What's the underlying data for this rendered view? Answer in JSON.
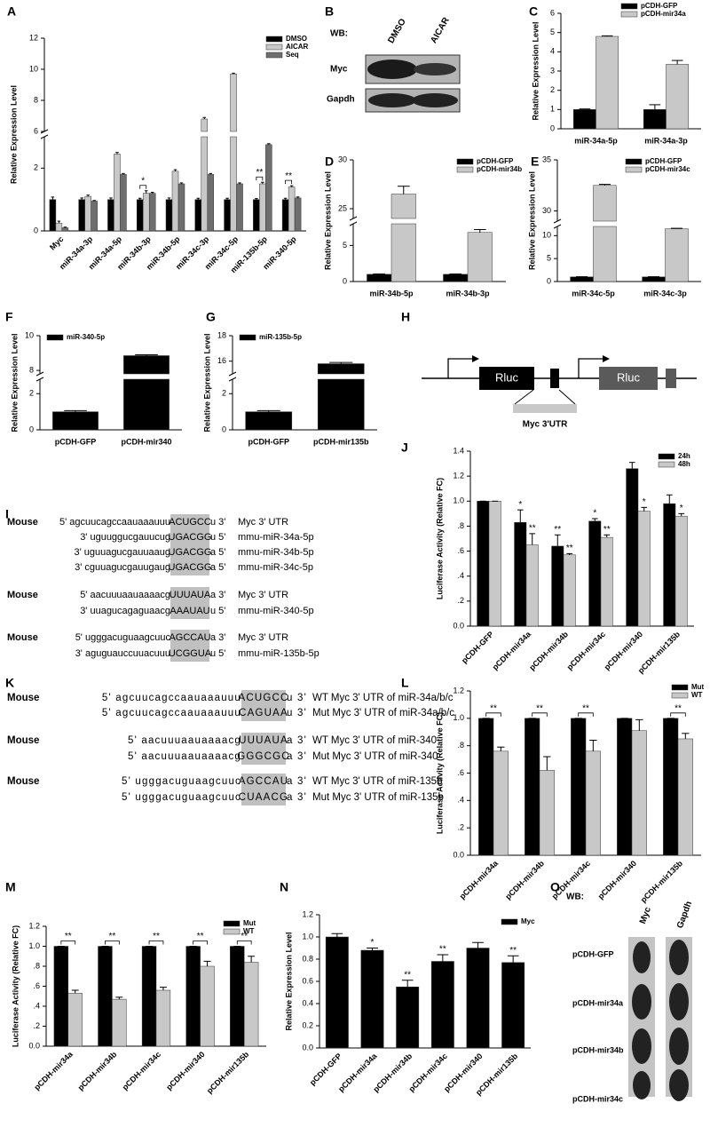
{
  "chart_data": [
    {
      "type": "bar",
      "panel": "A",
      "ylabel": "Relative Expression Level",
      "categories": [
        "Myc",
        "miR-34a-3p",
        "miR-34a-5p",
        "miR-34b-3p",
        "miR-34b-5p",
        "miR-34c-3p",
        "miR-34c-5p",
        "miR-135b-5p",
        "miR-340-5p"
      ],
      "series": [
        {
          "name": "DMSO",
          "color": "#000000",
          "values": [
            1.0,
            1.0,
            1.0,
            1.0,
            1.0,
            1.0,
            1.0,
            1.0,
            1.0
          ],
          "errors": [
            0.08,
            0.05,
            0.05,
            0.04,
            0.05,
            0.04,
            0.04,
            0.03,
            0.04
          ]
        },
        {
          "name": "AICAR",
          "color": "#c8c8c8",
          "values": [
            0.25,
            1.1,
            2.45,
            1.2,
            1.9,
            6.8,
            9.7,
            1.5,
            1.4
          ],
          "errors": [
            0.06,
            0.04,
            0.05,
            0.08,
            0.05,
            0.1,
            0.05,
            0.05,
            0.04
          ]
        },
        {
          "name": "Seq",
          "color": "#6e6e6e",
          "values": [
            0.1,
            0.95,
            1.8,
            1.2,
            1.5,
            1.8,
            1.5,
            2.75,
            1.05
          ],
          "errors": [
            0.02,
            0.02,
            0.03,
            0.03,
            0.03,
            0.03,
            0.03,
            0.03,
            0.03
          ]
        }
      ],
      "significance": [
        null,
        null,
        null,
        "*",
        null,
        null,
        null,
        "**",
        "**"
      ],
      "ylim": [
        0,
        12
      ],
      "yticks": [
        0,
        2,
        6,
        8,
        10,
        12
      ],
      "ybreak": [
        3,
        6
      ],
      "legend": "upper right"
    },
    {
      "type": "bar",
      "panel": "C",
      "ylabel": "Relative Expression Level",
      "categories": [
        "miR-34a-5p",
        "miR-34a-3p"
      ],
      "series": [
        {
          "name": "pCDH-GFP",
          "color": "#000000",
          "values": [
            1,
            1
          ],
          "errors": [
            0.03,
            0.25
          ]
        },
        {
          "name": "pCDH-mir34a",
          "color": "#c8c8c8",
          "values": [
            4.8,
            3.35
          ],
          "errors": [
            0.03,
            0.2
          ]
        }
      ],
      "ylim": [
        0,
        6
      ],
      "yticks": [
        0,
        1,
        2,
        3,
        4,
        5,
        6
      ],
      "legend": "upper right"
    },
    {
      "type": "bar",
      "panel": "D",
      "ylabel": "Relative Expression  Level",
      "categories": [
        "miR-34b-5p",
        "miR-34b-3p"
      ],
      "series": [
        {
          "name": "pCDH-GFP",
          "color": "#000000",
          "values": [
            1,
            1
          ],
          "errors": [
            0.05,
            0.05
          ]
        },
        {
          "name": "pCDH-mir34b",
          "color": "#c8c8c8",
          "values": [
            26.5,
            6.8
          ],
          "errors": [
            0.8,
            0.4
          ]
        }
      ],
      "ylim": [
        0,
        30
      ],
      "yticks": [
        0,
        5,
        25,
        30
      ],
      "ybreak": [
        8,
        24
      ],
      "legend": "upper right"
    },
    {
      "type": "bar",
      "panel": "E",
      "ylabel": "Relative Expression Level",
      "categories": [
        "miR-34c-5p",
        "miR-34c-3p"
      ],
      "series": [
        {
          "name": "pCDH-GFP",
          "color": "#000000",
          "values": [
            1,
            1
          ],
          "errors": [
            0.05,
            0.05
          ]
        },
        {
          "name": "pCDH-mir34c",
          "color": "#c8c8c8",
          "values": [
            32.5,
            11.5
          ],
          "errors": [
            0.1,
            0.1
          ]
        }
      ],
      "ylim": [
        0,
        35
      ],
      "yticks": [
        0,
        5,
        10,
        30,
        35
      ],
      "ybreak": [
        12,
        29
      ],
      "legend": "upper right"
    },
    {
      "type": "bar",
      "panel": "F",
      "ylabel": "Relative Expression Level",
      "categories": [
        "pCDH-GFP",
        "pCDH-mir340"
      ],
      "series": [
        {
          "name": "miR-340-5p",
          "color": "#000000",
          "values": [
            1,
            8.85
          ],
          "errors": [
            0.06,
            0.05
          ]
        }
      ],
      "ylim": [
        0,
        10
      ],
      "yticks": [
        0,
        2,
        8,
        10
      ],
      "ybreak": [
        2.8,
        7.8
      ],
      "legend": "upper left"
    },
    {
      "type": "bar",
      "panel": "G",
      "ylabel": "Relative Expression Level",
      "categories": [
        "pCDH-GFP",
        "pCDH-mir135b"
      ],
      "series": [
        {
          "name": "miR-135b-5p",
          "color": "#000000",
          "values": [
            1,
            15.8
          ],
          "errors": [
            0.06,
            0.1
          ]
        }
      ],
      "ylim": [
        0,
        18
      ],
      "yticks": [
        0,
        2,
        16,
        18
      ],
      "ybreak": [
        2.8,
        15
      ],
      "legend": "upper left"
    },
    {
      "type": "bar",
      "panel": "J",
      "ylabel": "Luciferase Activity (Relative FC)",
      "categories": [
        "pCDH-GFP",
        "pCDH-mir34a",
        "pCDH-mir34b",
        "pCDH-mir34c",
        "pCDH-mir340",
        "pCDH-mir135b"
      ],
      "series": [
        {
          "name": "24h",
          "color": "#000000",
          "values": [
            1.0,
            0.83,
            0.64,
            0.84,
            1.26,
            0.98
          ],
          "errors": [
            0,
            0.1,
            0.09,
            0.02,
            0.05,
            0.07
          ],
          "significance": [
            null,
            "*",
            "**",
            "*",
            null,
            null
          ]
        },
        {
          "name": "48h",
          "color": "#c8c8c8",
          "values": [
            1.0,
            0.65,
            0.57,
            0.71,
            0.92,
            0.88
          ],
          "errors": [
            0,
            0.09,
            0.01,
            0.02,
            0.03,
            0.02
          ],
          "significance": [
            null,
            "**",
            "**",
            "**",
            "*",
            "*"
          ]
        }
      ],
      "ylim": [
        0,
        1.4
      ],
      "yticks": [
        {
          "value": 0,
          "label": "0.0"
        },
        {
          "value": 0.2,
          "label": ".2"
        },
        {
          "value": 0.4,
          "label": ".4"
        },
        {
          "value": 0.6,
          "label": ".6"
        },
        {
          "value": 0.8,
          "label": ".8"
        },
        {
          "value": 1.0,
          "label": "1.0"
        },
        1.2,
        1.4
      ],
      "legend": "upper right"
    },
    {
      "type": "bar",
      "panel": "L",
      "ylabel": "Luciferase  Activity (Relative FC)",
      "categories": [
        "pCDH-mir34a",
        "pCDH-mir34b",
        "pCDH-mir34c",
        "pCDH-mir340",
        "pCDH-mir135b"
      ],
      "series": [
        {
          "name": "Mut",
          "color": "#000000",
          "values": [
            1,
            1,
            1,
            1,
            1
          ],
          "errors": [
            0,
            0,
            0,
            0,
            0
          ]
        },
        {
          "name": "WT",
          "color": "#c8c8c8",
          "values": [
            0.76,
            0.62,
            0.76,
            0.91,
            0.85
          ],
          "errors": [
            0.03,
            0.1,
            0.08,
            0.08,
            0.04
          ]
        }
      ],
      "significance": [
        "**",
        "**",
        "**",
        null,
        "**"
      ],
      "ylim": [
        0,
        1.2
      ],
      "yticks": [
        {
          "value": 0,
          "label": "0.0"
        },
        {
          "value": 0.2,
          "label": ".2"
        },
        {
          "value": 0.4,
          "label": ".4"
        },
        {
          "value": 0.6,
          "label": ".6"
        },
        {
          "value": 0.8,
          "label": ".8"
        },
        {
          "value": 1.0,
          "label": "1.0"
        },
        1.2
      ],
      "legend": "upper right"
    },
    {
      "type": "bar",
      "panel": "M",
      "ylabel": "Luciferase  Activity (Relative FC)",
      "categories": [
        "pCDH-mir34a",
        "pCDH-mir34b",
        "pCDH-mir34c",
        "pCDH-mir340",
        "pCDH-mir135b"
      ],
      "series": [
        {
          "name": "Mut",
          "color": "#000000",
          "values": [
            1,
            1,
            1,
            1,
            1
          ],
          "errors": [
            0,
            0,
            0,
            0,
            0
          ]
        },
        {
          "name": "WT",
          "color": "#c8c8c8",
          "values": [
            0.53,
            0.47,
            0.56,
            0.8,
            0.84
          ],
          "errors": [
            0.03,
            0.02,
            0.03,
            0.05,
            0.06
          ]
        }
      ],
      "significance": [
        "**",
        "**",
        "**",
        "**",
        "**"
      ],
      "ylim": [
        0,
        1.2
      ],
      "yticks": [
        {
          "value": 0,
          "label": "0.0"
        },
        {
          "value": 0.2,
          "label": ".2"
        },
        {
          "value": 0.4,
          "label": ".4"
        },
        {
          "value": 0.6,
          "label": ".6"
        },
        {
          "value": 0.8,
          "label": ".8"
        },
        {
          "value": 1.0,
          "label": "1.0"
        },
        1.2
      ],
      "legend": "upper right"
    },
    {
      "type": "bar",
      "panel": "N",
      "ylabel": "Relative Expression Level",
      "categories": [
        "pCDH-GFP",
        "pCDH-mir34a",
        "pCDH-mir34b",
        "pCDH-mir34c",
        "pCDH-mir340",
        "pCDH-mir135b"
      ],
      "series": [
        {
          "name": "Myc",
          "color": "#000000",
          "values": [
            1.0,
            0.88,
            0.55,
            0.78,
            0.9,
            0.77
          ],
          "errors": [
            0.03,
            0.02,
            0.06,
            0.06,
            0.05,
            0.06
          ],
          "significance": [
            null,
            "*",
            "**",
            "**",
            null,
            "**"
          ]
        }
      ],
      "ylim": [
        0,
        1.2
      ],
      "yticks": [
        {
          "value": 0,
          "label": "0.0"
        },
        0.2,
        0.4,
        0.6,
        0.8,
        {
          "value": 1.0,
          "label": "1.0"
        },
        1.2
      ],
      "legend": "upper right"
    }
  ],
  "panels": {
    "B": {
      "letter": "B",
      "wb_label": "WB:",
      "columns": [
        "DMSO",
        "AICAR"
      ],
      "rows": [
        "Myc",
        "Gapdh"
      ]
    },
    "H": {
      "letter": "H",
      "boxes": [
        "Rluc",
        "Rluc"
      ],
      "utr_label": "Myc 3'UTR"
    },
    "I": {
      "letter": "I",
      "groups": [
        {
          "rows": [
            {
              "species": "Mouse",
              "seq": [
                "5' agcuucagccaauaaauuu",
                "ACUGCC",
                "u 3'"
              ],
              "name": "Myc 3' UTR"
            },
            {
              "seq": [
                "3' uguuggucgauucug",
                "UGACGG",
                "u 5'"
              ],
              "name": "mmu-miR-34a-5p"
            },
            {
              "seq": [
                "3' uguuagucgauuaaug",
                "UGACGG",
                "a 5'"
              ],
              "name": "mmu-miR-34b-5p"
            },
            {
              "seq": [
                "3' cguuagucgauugaug",
                "UGACGG",
                "a 5'"
              ],
              "name": "mmu-miR-34c-5p"
            }
          ]
        },
        {
          "rows": [
            {
              "species": "Mouse",
              "seq": [
                "5' aacuuuaauaaaacg",
                "UUUAUA",
                "a 3'"
              ],
              "name": "Myc 3' UTR"
            },
            {
              "seq": [
                "3' uuagucagaguaacg",
                "AAAUAU",
                "u 5'"
              ],
              "name": "mmu-miR-340-5p"
            }
          ]
        },
        {
          "rows": [
            {
              "species": "Mouse",
              "seq": [
                "5' ugggacuguaagcuuc",
                "AGCCAU",
                "a 3'"
              ],
              "name": "Myc 3' UTR"
            },
            {
              "seq": [
                "3' aguguauccuuacuuu",
                "UCGGUA",
                "u 5'"
              ],
              "name": "mmu-miR-135b-5p"
            }
          ]
        }
      ]
    },
    "K": {
      "letter": "K",
      "groups": [
        {
          "rows": [
            {
              "species": "Mouse",
              "seq": [
                "5' agcuucagccaauaaauuu",
                "ACUGCC",
                "u 3'"
              ],
              "name": "WT Myc 3' UTR of miR-34a/b/c"
            },
            {
              "seq": [
                "5' agcuucagccaauaaauuu",
                "CAGUAA",
                "u 3'"
              ],
              "name": "Mut Myc 3' UTR of miR-34a/b/c"
            }
          ]
        },
        {
          "rows": [
            {
              "species": "Mouse",
              "seq": [
                "5' aacuuuaauaaaacg",
                "UUUAUA",
                "a 3'"
              ],
              "name": "WT Myc 3' UTR of miR-340"
            },
            {
              "seq": [
                "5' aacuuuaauaaaacg",
                "GGGCGC",
                "a 3'"
              ],
              "name": "Mut Myc 3' UTR of miR-340"
            }
          ]
        },
        {
          "rows": [
            {
              "species": "Mouse",
              "seq": [
                "5' ugggacuguaagcuuc",
                "AGCCAU",
                "a 3'"
              ],
              "name": "WT Myc 3' UTR of miR-135b"
            },
            {
              "seq": [
                "5' ugggacuguaagcuuc",
                "CUAACG",
                "a 3'"
              ],
              "name": "Mut Myc 3' UTR of miR-135b"
            }
          ]
        }
      ]
    },
    "O": {
      "letter": "O",
      "wb_label": "WB:",
      "columns": [
        "Myc",
        "Gapdh"
      ],
      "rows": [
        "pCDH-GFP",
        "pCDH-mir34a",
        "pCDH-mir34b",
        "pCDH-mir34c"
      ]
    }
  }
}
